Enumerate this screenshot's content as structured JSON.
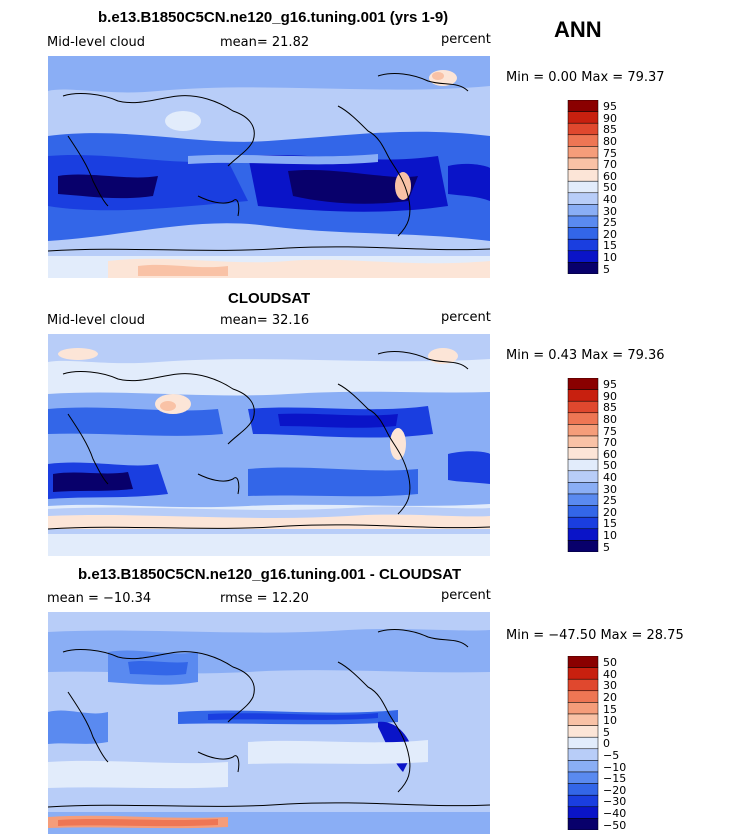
{
  "season": "ANN",
  "panels": [
    {
      "title": "b.e13.B1850C5CN.ne120_g16.tuning.001 (yrs 1-9)",
      "left_label": "Mid-level cloud",
      "center_label": "mean=  21.82",
      "right_label": "percent",
      "stats": "Min =   0.00 Max =  79.37",
      "colorbar_labels": [
        "95",
        "90",
        "85",
        "80",
        "75",
        "70",
        "60",
        "50",
        "40",
        "30",
        "25",
        "20",
        "15",
        "10",
        "5"
      ]
    },
    {
      "title": "CLOUDSAT",
      "left_label": "Mid-level cloud",
      "center_label": "mean=  32.16",
      "right_label": "percent",
      "stats": "Min =   0.43 Max =  79.36",
      "colorbar_labels": [
        "95",
        "90",
        "85",
        "80",
        "75",
        "70",
        "60",
        "50",
        "40",
        "30",
        "25",
        "20",
        "15",
        "10",
        "5"
      ]
    },
    {
      "title": "b.e13.B1850C5CN.ne120_g16.tuning.001 - CLOUDSAT",
      "left_label": "mean = −10.34",
      "center_label": "rmse =  12.20",
      "right_label": "percent",
      "stats": "Min = −47.50 Max =  28.75",
      "colorbar_labels": [
        "50",
        "40",
        "30",
        "20",
        "15",
        "10",
        "5",
        "0",
        "−5",
        "−10",
        "−15",
        "−20",
        "−30",
        "−40",
        "−50"
      ]
    }
  ],
  "chart_data": [
    {
      "type": "heatmap",
      "title": "b.e13.B1850C5CN.ne120_g16.tuning.001 (yrs 1-9)",
      "variable": "Mid-level cloud",
      "units": "percent",
      "mean": 21.82,
      "min": 0.0,
      "max": 79.37,
      "contour_levels": [
        5,
        10,
        15,
        20,
        25,
        30,
        40,
        50,
        60,
        70,
        75,
        80,
        85,
        90,
        95
      ]
    },
    {
      "type": "heatmap",
      "title": "CLOUDSAT",
      "variable": "Mid-level cloud",
      "units": "percent",
      "mean": 32.16,
      "min": 0.43,
      "max": 79.36,
      "contour_levels": [
        5,
        10,
        15,
        20,
        25,
        30,
        40,
        50,
        60,
        70,
        75,
        80,
        85,
        90,
        95
      ]
    },
    {
      "type": "heatmap",
      "title": "b.e13.B1850C5CN.ne120_g16.tuning.001 - CLOUDSAT",
      "units": "percent",
      "mean": -10.34,
      "rmse": 12.2,
      "min": -47.5,
      "max": 28.75,
      "contour_levels": [
        -50,
        -40,
        -30,
        -20,
        -15,
        -10,
        -5,
        0,
        5,
        10,
        15,
        20,
        30,
        40,
        50
      ]
    }
  ],
  "colors": {
    "abs_scale": [
      "#08006b",
      "#0a14c8",
      "#1a3ee0",
      "#3366e8",
      "#5a8af0",
      "#8aaef5",
      "#b8cdf8",
      "#e2ecfb",
      "#fce5d7",
      "#f9c2a6",
      "#f59d7a",
      "#ee7654",
      "#e0482e",
      "#c8200f",
      "#8a0000"
    ],
    "diff_scale": [
      "#08006b",
      "#0a14c8",
      "#1a3ee0",
      "#3366e8",
      "#5a8af0",
      "#8aaef5",
      "#b8cdf8",
      "#e2ecfb",
      "#fce5d7",
      "#f9c2a6",
      "#f59d7a",
      "#ee7654",
      "#e0482e",
      "#c8200f",
      "#8a0000"
    ]
  }
}
